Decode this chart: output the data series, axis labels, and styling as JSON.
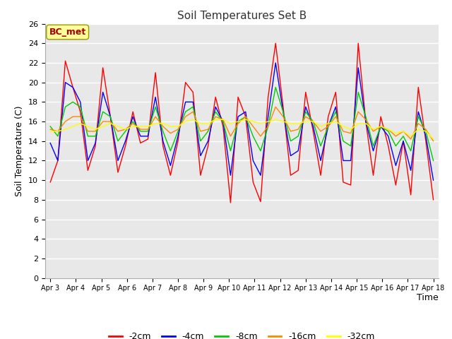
{
  "title": "Soil Temperatures Set B",
  "xlabel": "Time",
  "ylabel": "Soil Temperature (C)",
  "annotation": "BC_met",
  "ylim": [
    0,
    26
  ],
  "yticks": [
    0,
    2,
    4,
    6,
    8,
    10,
    12,
    14,
    16,
    18,
    20,
    22,
    24,
    26
  ],
  "legend_labels": [
    "-2cm",
    "-4cm",
    "-8cm",
    "-16cm",
    "-32cm"
  ],
  "legend_colors": [
    "#ff0000",
    "#0000ff",
    "#00cc00",
    "#ff8800",
    "#ffff00"
  ],
  "x_labels": [
    "Apr 3",
    "Apr 4",
    "Apr 5",
    "Apr 6",
    "Apr 7",
    "Apr 8",
    "Apr 9",
    "Apr 10",
    "Apr 11",
    "Apr 12",
    "Apr 13",
    "Apr 14",
    "Apr 15",
    "Apr 16",
    "Apr 17",
    "Apr 18"
  ],
  "series_2cm": [
    9.8,
    12.0,
    22.2,
    19.5,
    17.0,
    11.0,
    13.5,
    21.5,
    16.5,
    10.8,
    13.5,
    17.0,
    13.8,
    14.2,
    21.0,
    13.5,
    10.5,
    14.0,
    20.0,
    19.0,
    10.5,
    13.5,
    18.5,
    15.5,
    7.7,
    18.5,
    16.5,
    9.8,
    7.8,
    18.5,
    24.0,
    17.5,
    10.5,
    11.0,
    19.0,
    15.0,
    10.5,
    16.5,
    19.0,
    9.8,
    9.5,
    24.0,
    16.0,
    10.5,
    16.5,
    13.5,
    9.5,
    14.0,
    8.5,
    19.5,
    14.0,
    8.0
  ],
  "series_4cm": [
    13.8,
    12.0,
    20.0,
    19.5,
    18.0,
    12.0,
    13.8,
    19.0,
    16.5,
    12.0,
    14.0,
    16.5,
    14.5,
    14.5,
    18.5,
    14.0,
    11.5,
    14.5,
    18.0,
    18.0,
    12.5,
    14.0,
    17.5,
    16.0,
    10.5,
    16.5,
    17.0,
    12.0,
    10.5,
    16.5,
    22.0,
    17.0,
    12.5,
    13.0,
    17.5,
    15.5,
    12.0,
    15.5,
    17.5,
    12.0,
    12.0,
    21.5,
    16.0,
    13.0,
    15.5,
    14.5,
    11.5,
    14.0,
    11.0,
    17.0,
    14.5,
    10.0
  ],
  "series_8cm": [
    15.5,
    14.5,
    17.5,
    18.0,
    17.5,
    14.5,
    14.5,
    17.0,
    16.5,
    14.0,
    15.0,
    16.0,
    15.0,
    15.0,
    17.5,
    15.0,
    13.0,
    15.0,
    17.0,
    17.5,
    14.0,
    15.0,
    17.0,
    16.0,
    13.0,
    16.0,
    16.5,
    14.5,
    13.0,
    15.5,
    19.5,
    17.0,
    14.0,
    14.5,
    17.0,
    16.0,
    13.5,
    15.5,
    17.0,
    14.0,
    13.5,
    19.0,
    16.5,
    13.5,
    15.5,
    15.0,
    13.5,
    14.5,
    13.0,
    16.5,
    15.0,
    12.0
  ],
  "series_16cm": [
    15.2,
    15.0,
    16.0,
    16.5,
    16.5,
    15.0,
    15.0,
    16.0,
    16.0,
    15.0,
    15.2,
    15.8,
    15.2,
    15.2,
    16.5,
    15.5,
    14.8,
    15.2,
    16.5,
    17.0,
    15.0,
    15.2,
    16.5,
    16.2,
    14.5,
    15.8,
    16.5,
    15.5,
    14.5,
    15.5,
    17.5,
    16.5,
    15.0,
    15.2,
    16.5,
    16.0,
    15.0,
    15.5,
    16.5,
    15.0,
    14.8,
    17.0,
    16.2,
    15.0,
    15.5,
    15.2,
    14.5,
    15.0,
    14.2,
    15.8,
    15.2,
    14.0
  ],
  "series_32cm": [
    15.0,
    15.0,
    15.2,
    15.5,
    15.8,
    15.5,
    15.2,
    15.5,
    15.8,
    15.5,
    15.2,
    15.5,
    15.5,
    15.5,
    15.8,
    15.8,
    15.5,
    15.5,
    16.0,
    16.2,
    15.8,
    15.8,
    16.2,
    16.2,
    15.8,
    16.0,
    16.2,
    16.0,
    15.8,
    16.0,
    16.2,
    16.0,
    15.8,
    15.8,
    16.0,
    16.0,
    15.5,
    15.8,
    16.0,
    15.5,
    15.2,
    15.8,
    15.8,
    15.2,
    15.5,
    15.2,
    14.8,
    15.0,
    14.5,
    15.2,
    15.0,
    14.2
  ]
}
